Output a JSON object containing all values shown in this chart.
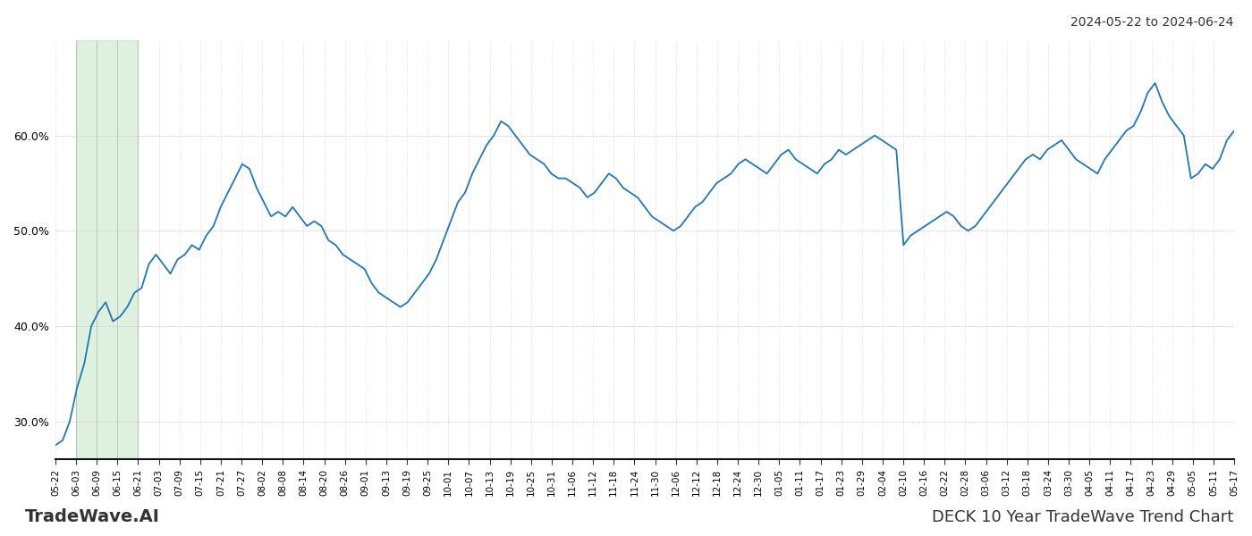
{
  "title_top_right": "2024-05-22 to 2024-06-24",
  "title_bottom_left": "TradeWave.AI",
  "title_bottom_right": "DECK 10 Year TradeWave Trend Chart",
  "line_color": "#1f77b4",
  "shaded_region_color": "#c8e6c9",
  "shaded_region_alpha": 0.6,
  "background_color": "#ffffff",
  "y_min": 26.0,
  "y_max": 70.0,
  "y_ticks": [
    30.0,
    40.0,
    50.0,
    60.0
  ],
  "x_labels": [
    "05-22",
    "06-03",
    "06-09",
    "06-15",
    "06-21",
    "07-03",
    "07-09",
    "07-15",
    "07-21",
    "07-27",
    "08-02",
    "08-08",
    "08-14",
    "08-20",
    "08-26",
    "09-01",
    "09-13",
    "09-19",
    "09-25",
    "10-01",
    "10-07",
    "10-13",
    "10-19",
    "10-25",
    "10-31",
    "11-06",
    "11-12",
    "11-18",
    "11-24",
    "11-30",
    "12-06",
    "12-12",
    "12-18",
    "12-24",
    "12-30",
    "01-05",
    "01-11",
    "01-17",
    "01-23",
    "01-29",
    "02-04",
    "02-10",
    "02-16",
    "02-22",
    "02-28",
    "03-06",
    "03-12",
    "03-18",
    "03-24",
    "03-30",
    "04-05",
    "04-11",
    "04-17",
    "04-23",
    "04-29",
    "05-05",
    "05-11",
    "05-17"
  ],
  "shaded_x_start_label": "06-03",
  "shaded_x_end_label": "06-21",
  "y_values": [
    27.5,
    28.0,
    30.0,
    33.5,
    36.0,
    40.0,
    41.5,
    42.5,
    40.5,
    41.0,
    42.0,
    43.5,
    44.0,
    46.5,
    47.5,
    46.5,
    45.5,
    47.0,
    47.5,
    48.5,
    48.0,
    49.5,
    50.5,
    52.5,
    54.0,
    55.5,
    57.0,
    56.5,
    54.5,
    53.0,
    51.5,
    52.0,
    51.5,
    52.5,
    51.5,
    50.5,
    51.0,
    50.5,
    49.0,
    48.5,
    47.5,
    47.0,
    46.5,
    46.0,
    44.5,
    43.5,
    43.0,
    42.5,
    42.0,
    42.5,
    43.5,
    44.5,
    45.5,
    47.0,
    49.0,
    51.0,
    53.0,
    54.0,
    56.0,
    57.5,
    59.0,
    60.0,
    61.5,
    61.0,
    60.0,
    59.0,
    58.0,
    57.5,
    57.0,
    56.0,
    55.5,
    55.5,
    55.0,
    54.5,
    53.5,
    54.0,
    55.0,
    56.0,
    55.5,
    54.5,
    54.0,
    53.5,
    52.5,
    51.5,
    51.0,
    50.5,
    50.0,
    50.5,
    51.5,
    52.5,
    53.0,
    54.0,
    55.0,
    55.5,
    56.0,
    57.0,
    57.5,
    57.0,
    56.5,
    56.0,
    57.0,
    58.0,
    58.5,
    57.5,
    57.0,
    56.5,
    56.0,
    57.0,
    57.5,
    58.5,
    58.0,
    58.5,
    59.0,
    59.5,
    60.0,
    59.5,
    59.0,
    58.5,
    48.5,
    49.5,
    50.0,
    50.5,
    51.0,
    51.5,
    52.0,
    51.5,
    50.5,
    50.0,
    50.5,
    51.5,
    52.5,
    53.5,
    54.5,
    55.5,
    56.5,
    57.5,
    58.0,
    57.5,
    58.5,
    59.0,
    59.5,
    58.5,
    57.5,
    57.0,
    56.5,
    56.0,
    57.5,
    58.5,
    59.5,
    60.5,
    61.0,
    62.5,
    64.5,
    65.5,
    63.5,
    62.0,
    61.0,
    60.0,
    55.5,
    56.0,
    57.0,
    56.5,
    57.5,
    59.5,
    60.5
  ]
}
